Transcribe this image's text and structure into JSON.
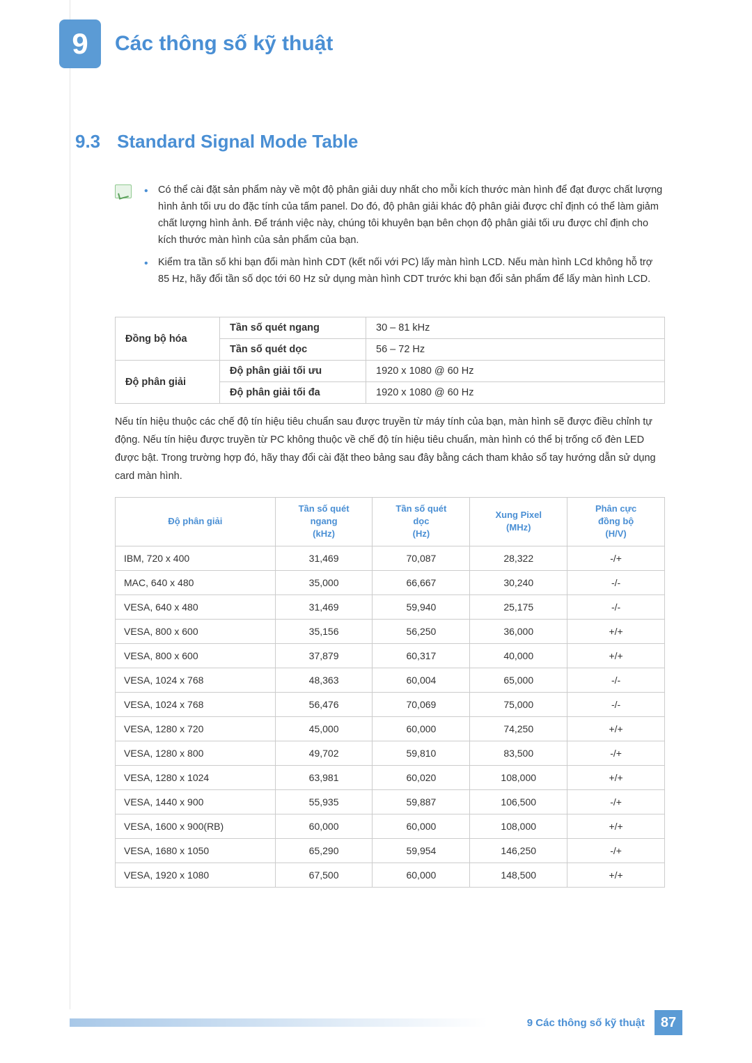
{
  "chapter": {
    "number": "9",
    "title": "Các thông số kỹ thuật"
  },
  "section": {
    "number": "9.3",
    "title": "Standard Signal Mode Table"
  },
  "notes": [
    "Có thể cài đặt sản phẩm này về một độ phân giải duy nhất cho mỗi kích thước màn hình để đạt được chất lượng hình ảnh tối ưu do đặc tính của tấm panel. Do đó, độ phân giải khác độ phân giải được chỉ định có thể làm giảm chất lượng hình ảnh. Để tránh việc này, chúng tôi khuyên bạn bên chọn độ phân giải tối ưu được chỉ định cho kích thước màn hình của sản phẩm của bạn.",
    "Kiểm tra tần số khi bạn đổi màn hình CDT (kết nối với PC) lấy màn hình LCD. Nếu màn hình LCd không hỗ trợ 85 Hz, hãy đổi tần số dọc tới 60 Hz sử dụng màn hình CDT trước khi bạn đổi sản phẩm để lấy màn hình LCD."
  ],
  "spec_table": {
    "rows": [
      {
        "cat": "Đồng bộ hóa",
        "label": "Tần số quét ngang",
        "value": "30 – 81 kHz"
      },
      {
        "cat": "",
        "label": "Tần số quét dọc",
        "value": "56 – 72 Hz"
      },
      {
        "cat": "Độ phân giải",
        "label": "Độ phân giải tối ưu",
        "value": "1920 x 1080 @ 60 Hz"
      },
      {
        "cat": "",
        "label": "Độ phân giải tối đa",
        "value": "1920 x 1080 @ 60 Hz"
      }
    ],
    "col_widths": [
      "150px",
      "210px",
      "auto"
    ]
  },
  "mid_text": "Nếu tín hiệu thuộc các chế độ tín hiệu tiêu chuẩn sau được truyền từ máy tính của bạn, màn hình sẽ được điều chỉnh tự động. Nếu tín hiệu được truyền từ PC không thuộc về chế độ tín hiệu tiêu chuẩn, màn hình có thể bị trống cố đèn LED được bật. Trong trường hợp đó, hãy thay đổi cài đặt theo bảng sau đây bằng cách tham khảo sổ tay hướng dẫn sử dụng card màn hình.",
  "mode_table": {
    "headers": [
      "Độ phân giải",
      "Tần số quét\nngang\n(kHz)",
      "Tần số quét\ndọc\n(Hz)",
      "Xung Pixel\n(MHz)",
      "Phân cực\nđồng bộ\n(H/V)"
    ],
    "col_widths": [
      "230px",
      "140px",
      "140px",
      "140px",
      "140px"
    ],
    "rows": [
      [
        "IBM, 720 x 400",
        "31,469",
        "70,087",
        "28,322",
        "-/+"
      ],
      [
        "MAC, 640 x 480",
        "35,000",
        "66,667",
        "30,240",
        "-/-"
      ],
      [
        "VESA, 640 x 480",
        "31,469",
        "59,940",
        "25,175",
        "-/-"
      ],
      [
        "VESA, 800 x 600",
        "35,156",
        "56,250",
        "36,000",
        "+/+"
      ],
      [
        "VESA, 800 x 600",
        "37,879",
        "60,317",
        "40,000",
        "+/+"
      ],
      [
        "VESA, 1024 x 768",
        "48,363",
        "60,004",
        "65,000",
        "-/-"
      ],
      [
        "VESA, 1024 x 768",
        "56,476",
        "70,069",
        "75,000",
        "-/-"
      ],
      [
        "VESA, 1280 x 720",
        "45,000",
        "60,000",
        "74,250",
        "+/+"
      ],
      [
        "VESA, 1280 x 800",
        "49,702",
        "59,810",
        "83,500",
        "-/+"
      ],
      [
        "VESA, 1280 x 1024",
        "63,981",
        "60,020",
        "108,000",
        "+/+"
      ],
      [
        "VESA, 1440 x 900",
        "55,935",
        "59,887",
        "106,500",
        "-/+"
      ],
      [
        "VESA, 1600 x 900(RB)",
        "60,000",
        "60,000",
        "108,000",
        "+/+"
      ],
      [
        "VESA, 1680 x 1050",
        "65,290",
        "59,954",
        "146,250",
        "-/+"
      ],
      [
        "VESA, 1920 x 1080",
        "67,500",
        "60,000",
        "148,500",
        "+/+"
      ]
    ]
  },
  "footer": {
    "chapter_ref": "9 Các thông số kỹ thuật",
    "page_number": "87"
  },
  "colors": {
    "accent": "#5b9bd5",
    "heading": "#4a8fd4",
    "text": "#333333",
    "border": "#cccccc"
  }
}
